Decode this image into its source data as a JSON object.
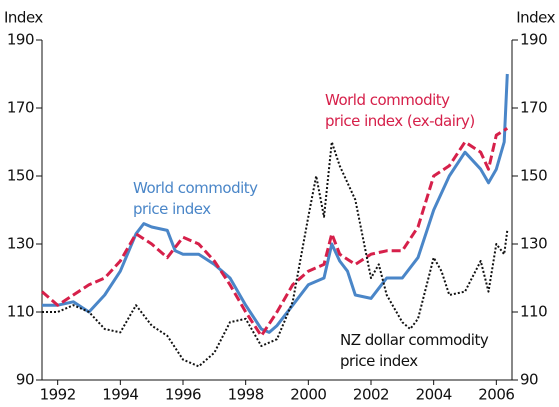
{
  "chart_data": {
    "type": "line",
    "ylabel": "Index",
    "y2label": "Index",
    "xlim": [
      1991.5,
      2006.5
    ],
    "xticks": [
      1992,
      1994,
      1996,
      1998,
      2000,
      2002,
      2004,
      2006
    ],
    "ylim": [
      90,
      190
    ],
    "yticks": [
      90,
      110,
      130,
      150,
      170,
      190
    ],
    "y2lim": [
      90,
      190
    ],
    "y2ticks": [
      90,
      110,
      130,
      150,
      170,
      190
    ],
    "series": [
      {
        "name": "World commodity price index",
        "color": "#4a86c8",
        "style": "solid",
        "x": [
          1991.5,
          1992,
          1992.5,
          1993,
          1993.5,
          1994,
          1994.5,
          1994.75,
          1995,
          1995.5,
          1995.75,
          1996,
          1996.5,
          1997,
          1997.5,
          1998,
          1998.5,
          1998.75,
          1999,
          1999.5,
          2000,
          2000.5,
          2000.75,
          2001,
          2001.25,
          2001.5,
          2002,
          2002.5,
          2003,
          2003.5,
          2004,
          2004.5,
          2005,
          2005.5,
          2005.75,
          2006,
          2006.25,
          2006.35
        ],
        "values": [
          112,
          112,
          113,
          110,
          115,
          122,
          133,
          136,
          135,
          134,
          128,
          127,
          127,
          124,
          120,
          112,
          105,
          104,
          106,
          112,
          118,
          120,
          130,
          125,
          122,
          115,
          114,
          120,
          120,
          126,
          140,
          150,
          157,
          152,
          148,
          152,
          160,
          180
        ]
      },
      {
        "name": "World commodity price index (ex-dairy)",
        "color": "#d6204a",
        "style": "dashed",
        "x": [
          1991.5,
          1992,
          1992.5,
          1993,
          1993.5,
          1994,
          1994.5,
          1995,
          1995.5,
          1996,
          1996.5,
          1997,
          1997.5,
          1998,
          1998.5,
          1999,
          1999.5,
          2000,
          2000.5,
          2000.75,
          2001,
          2001.5,
          2002,
          2002.5,
          2003,
          2003.5,
          2004,
          2004.5,
          2005,
          2005.5,
          2005.75,
          2006,
          2006.35
        ],
        "values": [
          116,
          112,
          115,
          118,
          120,
          125,
          133,
          130,
          126,
          132,
          130,
          125,
          118,
          110,
          103,
          110,
          118,
          122,
          124,
          133,
          127,
          124,
          127,
          128,
          128,
          135,
          150,
          153,
          160,
          157,
          152,
          162,
          164
        ]
      },
      {
        "name": "NZ dollar commodity price index",
        "color": "#111111",
        "style": "dotted",
        "x": [
          1991.5,
          1992,
          1992.5,
          1993,
          1993.5,
          1994,
          1994.5,
          1995,
          1995.5,
          1996,
          1996.5,
          1997,
          1997.5,
          1998,
          1998.5,
          1999,
          1999.5,
          2000,
          2000.25,
          2000.5,
          2000.75,
          2001,
          2001.5,
          2002,
          2002.25,
          2002.5,
          2003,
          2003.25,
          2003.5,
          2004,
          2004.25,
          2004.5,
          2005,
          2005.5,
          2005.75,
          2006,
          2006.25,
          2006.35
        ],
        "values": [
          110,
          110,
          112,
          110,
          105,
          104,
          112,
          106,
          103,
          96,
          94,
          98,
          107,
          108,
          100,
          102,
          113,
          138,
          150,
          138,
          160,
          153,
          143,
          120,
          124,
          115,
          107,
          105,
          108,
          126,
          122,
          115,
          116,
          125,
          116,
          130,
          127,
          134
        ]
      }
    ]
  }
}
